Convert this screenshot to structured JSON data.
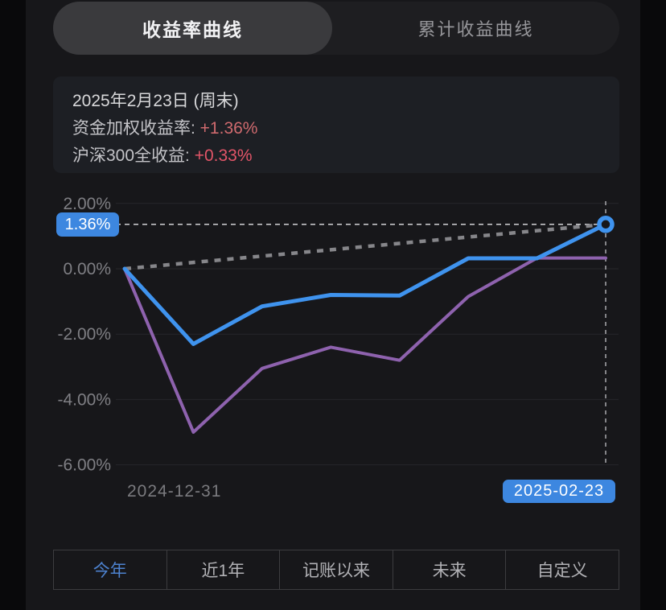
{
  "tabs": {
    "selected": "收益率曲线",
    "unselected": "累计收益曲线"
  },
  "info_card": {
    "date": "2025年2月23日 (周末)",
    "rows": [
      {
        "label": "资金加权收益率: ",
        "value": "+1.36%",
        "value_color": "#cf6a6e"
      },
      {
        "label": "沪深300全收益:  ",
        "value": "+0.33%",
        "value_color": "#e25568"
      }
    ]
  },
  "chart_data": {
    "type": "line",
    "title": "收益率曲线 (今年)",
    "x_start_label": "2024-12-31",
    "x_end_label": "2025-02-23",
    "y_ticks": [
      "2.00%",
      "0.00%",
      "-2.00%",
      "-4.00%",
      "-6.00%"
    ],
    "y_tick_values": [
      2,
      0,
      -2,
      -4,
      -6
    ],
    "ylim": [
      -6.6,
      2.3
    ],
    "grid": true,
    "series": [
      {
        "name": "资金加权收益率",
        "color": "#3f93ee",
        "width": 5,
        "values": [
          0.0,
          -2.3,
          -1.15,
          -0.8,
          -0.82,
          0.32,
          0.32,
          1.36
        ]
      },
      {
        "name": "沪深300全收益",
        "color": "#8e62ae",
        "width": 4,
        "values": [
          0.0,
          -5.0,
          -3.05,
          -2.4,
          -2.8,
          -0.85,
          0.33,
          0.33
        ]
      }
    ],
    "reference_line": {
      "from": 0,
      "to": 1.36,
      "style": "dashed",
      "color": "#86868a"
    },
    "crosshair": {
      "h_value": 1.36,
      "v_at_last_point": true,
      "color": "#a8a8ac"
    },
    "end_marker": {
      "value": 1.36,
      "color": "#3f93ee"
    }
  },
  "annotations": {
    "current_value_badge": "1.36%",
    "end_date_badge": "2025-02-23"
  },
  "range_tabs": [
    {
      "label": "今年",
      "selected": true
    },
    {
      "label": "近1年",
      "selected": false
    },
    {
      "label": "记账以来",
      "selected": false
    },
    {
      "label": "未来",
      "selected": false
    },
    {
      "label": "自定义",
      "selected": false
    }
  ],
  "colors": {
    "accent_blue": "#3d87e0",
    "line_blue": "#3f93ee",
    "line_purple": "#8e62ae",
    "grid": "#27272a",
    "axis_text": "#7f7f84",
    "selected_range_text": "#4d82cf"
  }
}
